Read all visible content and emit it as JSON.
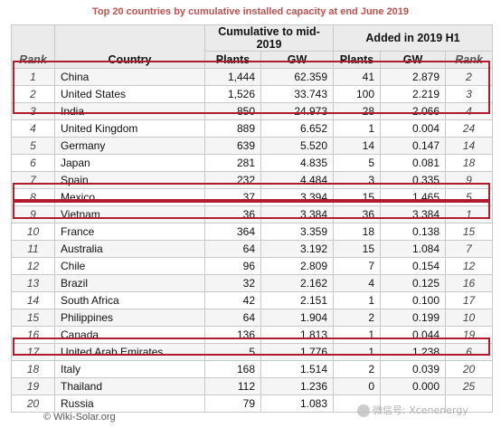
{
  "title": "Top 20 countries by cumulative installed capacity at end June 2019",
  "headers": {
    "rank": "Rank",
    "country": "Country",
    "group1": "Cumulative to mid-2019",
    "group2": "Added in 2019 H1",
    "plants": "Plants",
    "gw": "GW",
    "plants2": "Plants",
    "gw2": "GW",
    "rank2": "Rank"
  },
  "rows": [
    {
      "rank": "1",
      "country": "China",
      "plants": "1,444",
      "gw": "62.359",
      "added_plants": "41",
      "added_gw": "2.879",
      "added_rank": "2"
    },
    {
      "rank": "2",
      "country": "United States",
      "plants": "1,526",
      "gw": "33.743",
      "added_plants": "100",
      "added_gw": "2.219",
      "added_rank": "3"
    },
    {
      "rank": "3",
      "country": "India",
      "plants": "850",
      "gw": "24.973",
      "added_plants": "28",
      "added_gw": "2.066",
      "added_rank": "4"
    },
    {
      "rank": "4",
      "country": "United Kingdom",
      "plants": "889",
      "gw": "6.652",
      "added_plants": "1",
      "added_gw": "0.004",
      "added_rank": "24"
    },
    {
      "rank": "5",
      "country": "Germany",
      "plants": "639",
      "gw": "5.520",
      "added_plants": "14",
      "added_gw": "0.147",
      "added_rank": "14"
    },
    {
      "rank": "6",
      "country": "Japan",
      "plants": "281",
      "gw": "4.835",
      "added_plants": "5",
      "added_gw": "0.081",
      "added_rank": "18"
    },
    {
      "rank": "7",
      "country": "Spain",
      "plants": "232",
      "gw": "4.484",
      "added_plants": "3",
      "added_gw": "0.335",
      "added_rank": "9"
    },
    {
      "rank": "8",
      "country": "Mexico",
      "plants": "37",
      "gw": "3.394",
      "added_plants": "15",
      "added_gw": "1.465",
      "added_rank": "5"
    },
    {
      "rank": "9",
      "country": "Vietnam",
      "plants": "36",
      "gw": "3.384",
      "added_plants": "36",
      "added_gw": "3.384",
      "added_rank": "1"
    },
    {
      "rank": "10",
      "country": "France",
      "plants": "364",
      "gw": "3.359",
      "added_plants": "18",
      "added_gw": "0.138",
      "added_rank": "15"
    },
    {
      "rank": "11",
      "country": "Australia",
      "plants": "64",
      "gw": "3.192",
      "added_plants": "15",
      "added_gw": "1.084",
      "added_rank": "7"
    },
    {
      "rank": "12",
      "country": "Chile",
      "plants": "96",
      "gw": "2.809",
      "added_plants": "7",
      "added_gw": "0.154",
      "added_rank": "12"
    },
    {
      "rank": "13",
      "country": "Brazil",
      "plants": "32",
      "gw": "2.162",
      "added_plants": "4",
      "added_gw": "0.125",
      "added_rank": "16"
    },
    {
      "rank": "14",
      "country": "South Africa",
      "plants": "42",
      "gw": "2.151",
      "added_plants": "1",
      "added_gw": "0.100",
      "added_rank": "17"
    },
    {
      "rank": "15",
      "country": "Philippines",
      "plants": "64",
      "gw": "1.904",
      "added_plants": "2",
      "added_gw": "0.199",
      "added_rank": "10"
    },
    {
      "rank": "16",
      "country": "Canada",
      "plants": "136",
      "gw": "1.813",
      "added_plants": "1",
      "added_gw": "0.044",
      "added_rank": "19"
    },
    {
      "rank": "17",
      "country": "United Arab Emirates",
      "plants": "5",
      "gw": "1.776",
      "added_plants": "1",
      "added_gw": "1.238",
      "added_rank": "6"
    },
    {
      "rank": "18",
      "country": "Italy",
      "plants": "168",
      "gw": "1.514",
      "added_plants": "2",
      "added_gw": "0.039",
      "added_rank": "20"
    },
    {
      "rank": "19",
      "country": "Thailand",
      "plants": "112",
      "gw": "1.236",
      "added_plants": "0",
      "added_gw": "0.000",
      "added_rank": "25"
    },
    {
      "rank": "20",
      "country": "Russia",
      "plants": "79",
      "gw": "1.083",
      "added_plants": "",
      "added_gw": "",
      "added_rank": ""
    }
  ],
  "footer": "© Wiki-Solar.org",
  "watermark": "微信号: Xcenenergy",
  "colors": {
    "title": "#c0504d",
    "highlight": "#b01c2e",
    "header_bg": "#ebebeb",
    "row_alt": "#f5f5f5"
  }
}
